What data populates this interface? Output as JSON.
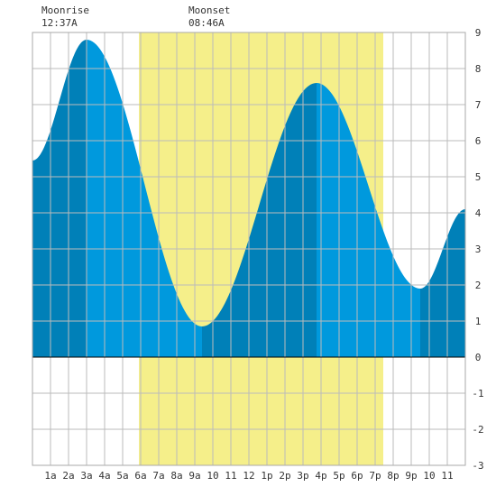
{
  "moonrise": {
    "label": "Moonrise",
    "time": "12:37A"
  },
  "moonset": {
    "label": "Moonset",
    "time": "08:46A"
  },
  "colors": {
    "daylight": "#f5ef8a",
    "water_rising": "#0080b8",
    "water_falling": "#0099dd",
    "grid": "#bbbbbb",
    "text": "#333333"
  },
  "chart_data": {
    "type": "area",
    "title": "",
    "xlabel": "",
    "ylabel": "",
    "xlim": [
      0,
      24
    ],
    "ylim": [
      -3,
      9
    ],
    "yticks": [
      -3,
      -2,
      -1,
      0,
      1,
      2,
      3,
      4,
      5,
      6,
      7,
      8,
      9
    ],
    "xticks": [
      1,
      2,
      3,
      4,
      5,
      6,
      7,
      8,
      9,
      10,
      11,
      12,
      13,
      14,
      15,
      16,
      17,
      18,
      19,
      20,
      21,
      22,
      23
    ],
    "xtick_labels": [
      "1a",
      "2a",
      "3a",
      "4a",
      "5a",
      "6a",
      "7a",
      "8a",
      "9a",
      "10",
      "11",
      "12",
      "1p",
      "2p",
      "3p",
      "4p",
      "5p",
      "6p",
      "7p",
      "8p",
      "9p",
      "10",
      "11"
    ],
    "grid": true,
    "daylight": [
      5.9,
      19.45
    ],
    "extremes": [
      {
        "time": 3.0,
        "height": 8.8,
        "type": "high"
      },
      {
        "time": 9.4,
        "height": 0.85,
        "type": "low"
      },
      {
        "time": 15.75,
        "height": 7.6,
        "type": "high"
      },
      {
        "time": 21.5,
        "height": 1.9,
        "type": "low"
      }
    ],
    "series": [
      {
        "x": [
          0,
          3.0,
          9.4,
          15.75,
          21.5,
          24
        ],
        "values": [
          5.45,
          8.8,
          0.85,
          7.6,
          1.9,
          4.1
        ]
      }
    ]
  }
}
